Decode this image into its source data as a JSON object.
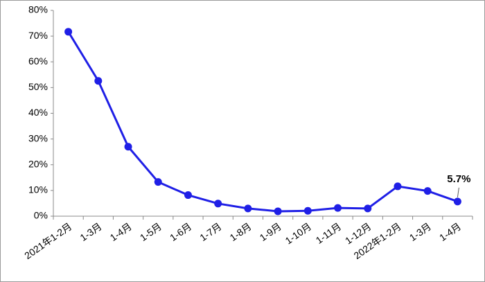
{
  "chart_data": {
    "type": "line",
    "categories": [
      "2021年1-2月",
      "1-3月",
      "1-4月",
      "1-5月",
      "1-6月",
      "1-7月",
      "1-8月",
      "1-9月",
      "1-10月",
      "1-11月",
      "1-12月",
      "2022年1-2月",
      "1-3月",
      "1-4月"
    ],
    "values": [
      71.7,
      52.6,
      27.0,
      13.3,
      8.2,
      4.9,
      3.0,
      1.9,
      2.1,
      3.2,
      3.0,
      11.6,
      9.8,
      5.7
    ],
    "value_labels": [
      null,
      null,
      null,
      null,
      null,
      null,
      null,
      null,
      null,
      null,
      null,
      null,
      null,
      "5.7%"
    ],
    "color": "#1f1fe6",
    "ylim": [
      0,
      80
    ],
    "yticks": [
      {
        "value": 0,
        "label": "0%"
      },
      {
        "value": 10,
        "label": "10%"
      },
      {
        "value": 20,
        "label": "20%"
      },
      {
        "value": 30,
        "label": "30%"
      },
      {
        "value": 40,
        "label": "40%"
      },
      {
        "value": 50,
        "label": "50%"
      },
      {
        "value": 60,
        "label": "60%"
      },
      {
        "value": 70,
        "label": "70%"
      },
      {
        "value": 80,
        "label": "80%"
      }
    ],
    "grid": false
  }
}
